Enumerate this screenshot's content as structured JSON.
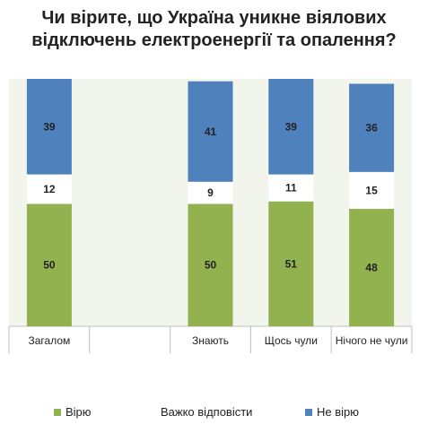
{
  "chart_data": {
    "type": "bar",
    "stacked": true,
    "title_lines": [
      "Чи вірите, що Україна уникне віялових",
      "відключень електроенергії та опалення?"
    ],
    "categories": [
      "Загалом",
      "",
      "Знають",
      "Щось чули",
      "Нічого не чули"
    ],
    "series": [
      {
        "name": "Вірю",
        "color": "#92b24f",
        "values": [
          50,
          null,
          50,
          51,
          48
        ]
      },
      {
        "name": "Важко відповісти",
        "color": "#ffffff",
        "values": [
          12,
          null,
          9,
          11,
          15
        ]
      },
      {
        "name": "Не вірю",
        "color": "#4f81bd",
        "values": [
          39,
          null,
          41,
          39,
          36
        ]
      }
    ],
    "ylim": [
      0,
      101
    ],
    "grid": false,
    "legend_position": "bottom"
  }
}
